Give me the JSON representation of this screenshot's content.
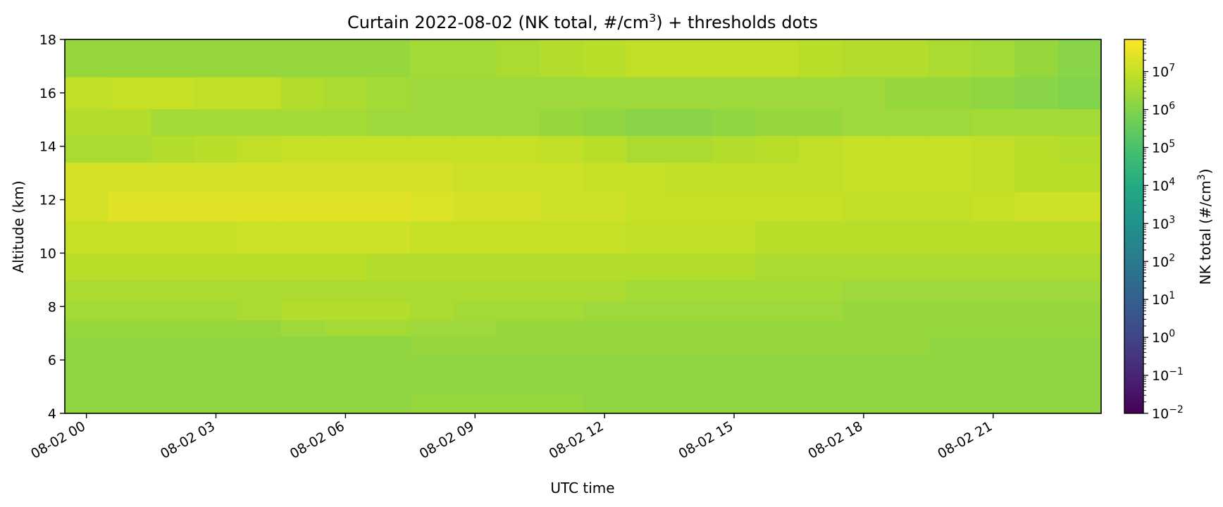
{
  "chart_data": {
    "type": "heatmap",
    "title": "Curtain 2022-08-02 (NK total, #/cm",
    "title_superscript": "3",
    "title_suffix": ") + thresholds dots",
    "xlabel": "UTC time",
    "ylabel": "Altitude (km)",
    "colorbar_label": "NK total (#/cm",
    "colorbar_label_superscript": "3",
    "colorbar_label_suffix": ")",
    "colormap": "viridis",
    "scale": "log",
    "clim": [
      0.01,
      70000000
    ],
    "x_time_start": "2022-08-01T23:30",
    "x_time_end": "2022-08-02T23:30",
    "x_step_hours": 1,
    "xlim_hours": [
      -0.5,
      23.5
    ],
    "x_ticks": [
      {
        "hour": 0,
        "label": "08-02 00"
      },
      {
        "hour": 3,
        "label": "08-02 03"
      },
      {
        "hour": 6,
        "label": "08-02 06"
      },
      {
        "hour": 9,
        "label": "08-02 09"
      },
      {
        "hour": 12,
        "label": "08-02 12"
      },
      {
        "hour": 15,
        "label": "08-02 15"
      },
      {
        "hour": 18,
        "label": "08-02 18"
      },
      {
        "hour": 21,
        "label": "08-02 21"
      }
    ],
    "ylim": [
      4,
      18
    ],
    "y_ticks": [
      {
        "value": 4,
        "label": "4"
      },
      {
        "value": 6,
        "label": "6"
      },
      {
        "value": 8,
        "label": "8"
      },
      {
        "value": 10,
        "label": "10"
      },
      {
        "value": 12,
        "label": "12"
      },
      {
        "value": 14,
        "label": "14"
      },
      {
        "value": 16,
        "label": "16"
      },
      {
        "value": 18,
        "label": "18"
      }
    ],
    "altitude_bin_edges_km": [
      4,
      4.7,
      5.5,
      6.2,
      6.9,
      7.5,
      8.2,
      9.0,
      10.0,
      11.2,
      12.3,
      13.4,
      14.4,
      15.4,
      16.6,
      18
    ],
    "colorbar_ticks": [
      {
        "value": 0.01,
        "base": "10",
        "exp": "−2"
      },
      {
        "value": 0.1,
        "base": "10",
        "exp": "−1"
      },
      {
        "value": 1,
        "base": "10",
        "exp": "0"
      },
      {
        "value": 10,
        "base": "10",
        "exp": "1"
      },
      {
        "value": 100,
        "base": "10",
        "exp": "2"
      },
      {
        "value": 1000,
        "base": "10",
        "exp": "3"
      },
      {
        "value": 10000,
        "base": "10",
        "exp": "4"
      },
      {
        "value": 100000,
        "base": "10",
        "exp": "5"
      },
      {
        "value": 1000000,
        "base": "10",
        "exp": "6"
      },
      {
        "value": 10000000,
        "base": "10",
        "exp": "7"
      }
    ],
    "log10_values_by_altitude_bin": [
      [
        6.2,
        6.2,
        6.2,
        6.2,
        6.2,
        6.2,
        6.2,
        6.2,
        6.3,
        6.3,
        6.3,
        6.3,
        6.2,
        6.2,
        6.2,
        6.2,
        6.2,
        6.2,
        6.2,
        6.2,
        6.2,
        6.2,
        6.2,
        6.2
      ],
      [
        6.2,
        6.2,
        6.2,
        6.2,
        6.2,
        6.2,
        6.2,
        6.2,
        6.2,
        6.2,
        6.2,
        6.2,
        6.2,
        6.2,
        6.2,
        6.2,
        6.2,
        6.2,
        6.2,
        6.2,
        6.2,
        6.2,
        6.2,
        6.2
      ],
      [
        6.2,
        6.2,
        6.2,
        6.2,
        6.2,
        6.2,
        6.2,
        6.2,
        6.2,
        6.2,
        6.2,
        6.2,
        6.2,
        6.2,
        6.2,
        6.2,
        6.2,
        6.2,
        6.2,
        6.2,
        6.2,
        6.2,
        6.2,
        6.2
      ],
      [
        6.2,
        6.2,
        6.2,
        6.2,
        6.2,
        6.2,
        6.2,
        6.2,
        6.3,
        6.3,
        6.3,
        6.3,
        6.3,
        6.3,
        6.3,
        6.3,
        6.3,
        6.3,
        6.3,
        6.3,
        6.2,
        6.2,
        6.2,
        6.2
      ],
      [
        6.3,
        6.3,
        6.3,
        6.3,
        6.3,
        6.4,
        6.5,
        6.5,
        6.4,
        6.4,
        6.3,
        6.3,
        6.3,
        6.3,
        6.3,
        6.3,
        6.3,
        6.3,
        6.3,
        6.3,
        6.3,
        6.3,
        6.3,
        6.3
      ],
      [
        6.5,
        6.5,
        6.5,
        6.5,
        6.6,
        6.7,
        6.7,
        6.7,
        6.6,
        6.5,
        6.5,
        6.5,
        6.4,
        6.4,
        6.4,
        6.4,
        6.4,
        6.4,
        6.3,
        6.3,
        6.3,
        6.3,
        6.3,
        6.3
      ],
      [
        6.6,
        6.6,
        6.6,
        6.6,
        6.6,
        6.6,
        6.6,
        6.6,
        6.6,
        6.6,
        6.6,
        6.6,
        6.6,
        6.5,
        6.5,
        6.5,
        6.5,
        6.5,
        6.4,
        6.4,
        6.4,
        6.4,
        6.4,
        6.4
      ],
      [
        6.8,
        6.8,
        6.8,
        6.8,
        6.8,
        6.8,
        6.8,
        6.7,
        6.7,
        6.7,
        6.7,
        6.7,
        6.7,
        6.7,
        6.7,
        6.7,
        6.6,
        6.6,
        6.6,
        6.6,
        6.6,
        6.6,
        6.6,
        6.6
      ],
      [
        7.0,
        7.0,
        7.0,
        7.0,
        7.1,
        7.1,
        7.1,
        7.1,
        7.0,
        7.0,
        7.0,
        7.0,
        7.0,
        6.9,
        6.9,
        6.9,
        6.8,
        6.8,
        6.8,
        6.8,
        6.8,
        6.8,
        6.8,
        6.8
      ],
      [
        7.2,
        7.4,
        7.4,
        7.4,
        7.4,
        7.4,
        7.4,
        7.4,
        7.3,
        7.2,
        7.2,
        7.1,
        7.1,
        7.0,
        7.0,
        7.0,
        7.0,
        7.0,
        6.9,
        6.9,
        6.9,
        7.0,
        7.1,
        7.1
      ],
      [
        7.2,
        7.2,
        7.2,
        7.2,
        7.2,
        7.2,
        7.2,
        7.2,
        7.2,
        7.1,
        7.1,
        7.1,
        7.0,
        7.0,
        6.9,
        6.9,
        6.9,
        6.9,
        7.0,
        7.0,
        7.0,
        6.9,
        6.8,
        6.8
      ],
      [
        6.6,
        6.6,
        6.7,
        6.8,
        6.9,
        7.0,
        7.0,
        7.0,
        7.0,
        7.0,
        7.0,
        6.9,
        6.8,
        6.6,
        6.6,
        6.7,
        6.8,
        6.9,
        7.0,
        7.0,
        7.0,
        6.9,
        6.8,
        6.7
      ],
      [
        6.7,
        6.7,
        6.5,
        6.5,
        6.5,
        6.5,
        6.5,
        6.4,
        6.4,
        6.4,
        6.4,
        6.3,
        6.2,
        6.1,
        6.1,
        6.2,
        6.3,
        6.3,
        6.4,
        6.4,
        6.4,
        6.5,
        6.5,
        6.5
      ],
      [
        6.9,
        7.0,
        7.0,
        6.9,
        6.9,
        6.7,
        6.6,
        6.5,
        6.4,
        6.4,
        6.4,
        6.4,
        6.4,
        6.4,
        6.4,
        6.4,
        6.4,
        6.4,
        6.4,
        6.3,
        6.3,
        6.2,
        6.1,
        6.0
      ],
      [
        6.3,
        6.3,
        6.3,
        6.3,
        6.3,
        6.3,
        6.3,
        6.3,
        6.5,
        6.5,
        6.6,
        6.7,
        6.8,
        6.9,
        6.9,
        6.9,
        6.9,
        6.8,
        6.7,
        6.7,
        6.6,
        6.5,
        6.3,
        6.1
      ]
    ]
  }
}
